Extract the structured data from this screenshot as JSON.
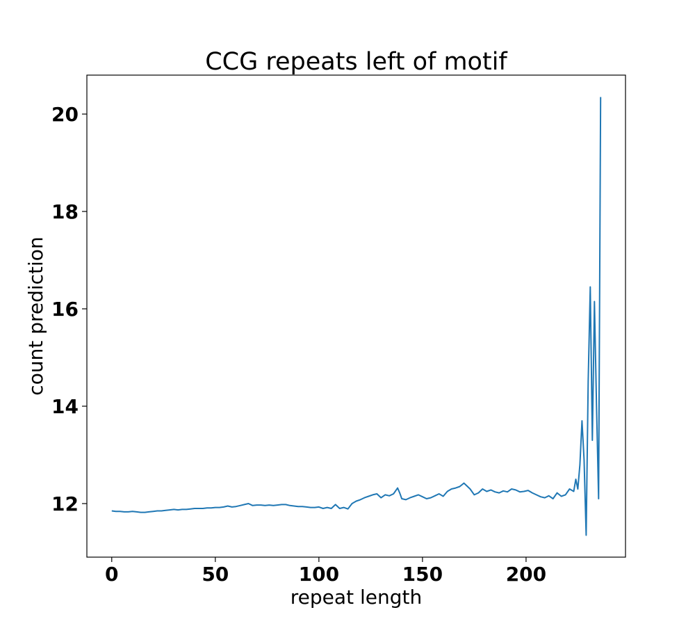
{
  "chart_data": {
    "type": "line",
    "title": "CCG repeats left of motif",
    "xlabel": "repeat length",
    "ylabel": "count prediction",
    "xlim": [
      -12,
      248
    ],
    "ylim": [
      10.9,
      20.8
    ],
    "xticks": [
      0,
      50,
      100,
      150,
      200
    ],
    "yticks": [
      12,
      14,
      16,
      18,
      20
    ],
    "grid": false,
    "series": [
      {
        "color": "#1f77b4",
        "x": [
          0,
          2,
          4,
          6,
          8,
          10,
          12,
          14,
          16,
          18,
          20,
          22,
          24,
          26,
          28,
          30,
          32,
          34,
          36,
          38,
          40,
          42,
          44,
          46,
          48,
          50,
          52,
          54,
          56,
          58,
          60,
          62,
          64,
          66,
          68,
          70,
          72,
          74,
          76,
          78,
          80,
          82,
          84,
          86,
          88,
          90,
          92,
          94,
          96,
          98,
          100,
          102,
          104,
          106,
          108,
          110,
          112,
          114,
          116,
          118,
          120,
          122,
          124,
          126,
          128,
          130,
          132,
          134,
          136,
          138,
          139,
          140,
          142,
          144,
          146,
          148,
          150,
          152,
          154,
          156,
          158,
          160,
          162,
          164,
          166,
          168,
          170,
          171,
          173,
          175,
          177,
          179,
          181,
          183,
          185,
          187,
          189,
          191,
          193,
          195,
          197,
          199,
          201,
          203,
          205,
          207,
          209,
          211,
          213,
          215,
          217,
          219,
          221,
          223,
          224,
          225,
          226,
          227,
          228,
          229,
          230,
          231,
          232,
          233,
          234,
          235,
          236
        ],
        "y": [
          11.85,
          11.84,
          11.84,
          11.83,
          11.83,
          11.84,
          11.83,
          11.82,
          11.82,
          11.83,
          11.84,
          11.85,
          11.85,
          11.86,
          11.87,
          11.88,
          11.87,
          11.88,
          11.88,
          11.89,
          11.9,
          11.9,
          11.9,
          11.91,
          11.91,
          11.92,
          11.92,
          11.93,
          11.95,
          11.93,
          11.94,
          11.96,
          11.98,
          12.0,
          11.96,
          11.97,
          11.97,
          11.96,
          11.97,
          11.96,
          11.97,
          11.98,
          11.98,
          11.96,
          11.95,
          11.94,
          11.94,
          11.93,
          11.92,
          11.92,
          11.93,
          11.9,
          11.92,
          11.9,
          11.98,
          11.9,
          11.92,
          11.89,
          12.0,
          12.05,
          12.08,
          12.12,
          12.15,
          12.18,
          12.2,
          12.12,
          12.18,
          12.16,
          12.2,
          12.32,
          12.22,
          12.1,
          12.08,
          12.12,
          12.15,
          12.18,
          12.14,
          12.1,
          12.12,
          12.16,
          12.2,
          12.15,
          12.25,
          12.3,
          12.32,
          12.35,
          12.42,
          12.38,
          12.3,
          12.18,
          12.22,
          12.3,
          12.25,
          12.28,
          12.24,
          12.22,
          12.26,
          12.24,
          12.3,
          12.28,
          12.24,
          12.25,
          12.27,
          12.22,
          12.18,
          12.14,
          12.12,
          12.16,
          12.1,
          12.22,
          12.15,
          12.18,
          12.3,
          12.25,
          12.5,
          12.3,
          12.8,
          13.7,
          12.9,
          11.35,
          14.5,
          16.45,
          13.3,
          16.15,
          14.0,
          12.1,
          20.35
        ]
      }
    ]
  }
}
